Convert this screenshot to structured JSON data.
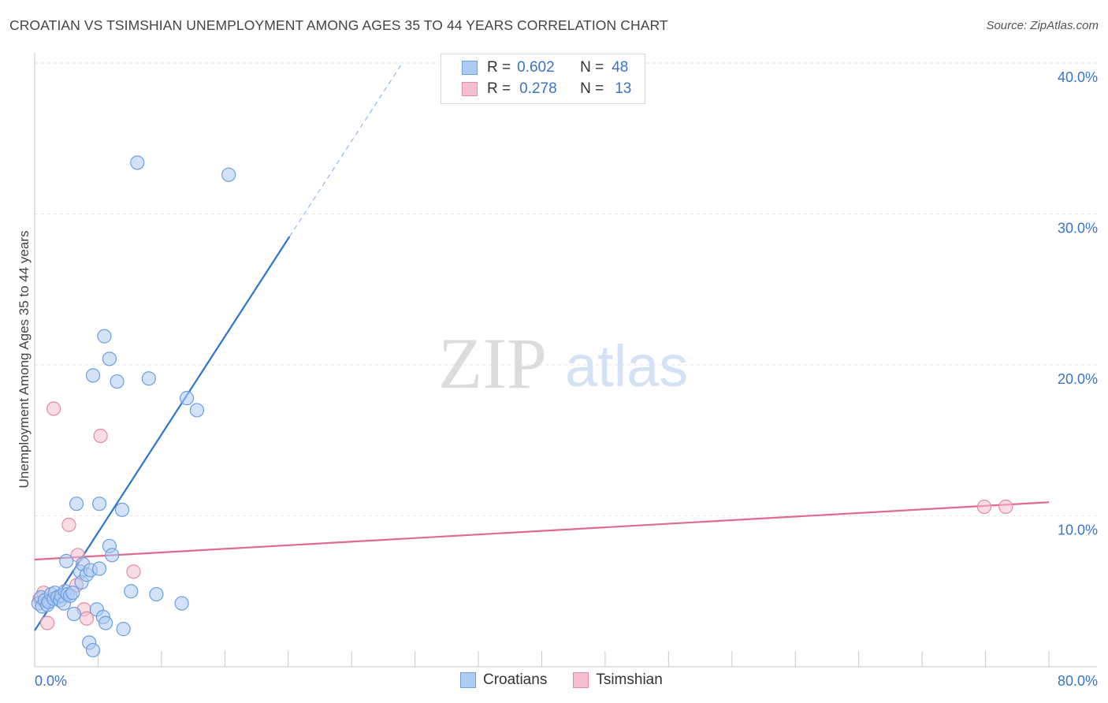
{
  "header": {
    "title": "CROATIAN VS TSIMSHIAN UNEMPLOYMENT AMONG AGES 35 TO 44 YEARS CORRELATION CHART",
    "source": "Source: ZipAtlas.com"
  },
  "watermark": {
    "zip": "ZIP",
    "atlas": "atlas"
  },
  "legend": {
    "rows": [
      {
        "r_label": "R =",
        "r_value": "0.602",
        "n_label": "N =",
        "n_value": "48"
      },
      {
        "r_label": "R =",
        "r_value": "0.278",
        "n_label": "N =",
        "n_value": "13"
      }
    ]
  },
  "colors": {
    "croatians_fill": "#aecbf1",
    "croatians_stroke": "#6c9ee0",
    "croatians_line": "#2e74d0",
    "tsimshian_fill": "#f6bfd0",
    "tsimshian_stroke": "#e48aa6",
    "tsimshian_line": "#e06a92",
    "tick_label": "#3a74c4",
    "grid": "#e5e5e5"
  },
  "chart_data": {
    "type": "scatter",
    "title": "CROATIAN VS TSIMSHIAN UNEMPLOYMENT AMONG AGES 35 TO 44 YEARS CORRELATION CHART",
    "xlabel": "",
    "ylabel": "Unemployment Among Ages 35 to 44 years",
    "xlim": [
      0,
      80
    ],
    "ylim": [
      0,
      40
    ],
    "x_tick_labels": [
      "0.0%",
      "80.0%"
    ],
    "y_ticks": [
      10,
      20,
      30,
      40
    ],
    "y_tick_labels": [
      "10.0%",
      "20.0%",
      "30.0%",
      "40.0%"
    ],
    "grid": true,
    "series": [
      {
        "name": "Croatians",
        "r": 0.602,
        "n": 48,
        "points": [
          [
            0.3,
            4.2
          ],
          [
            0.5,
            4.6
          ],
          [
            0.6,
            4.0
          ],
          [
            0.8,
            4.4
          ],
          [
            1.0,
            4.1
          ],
          [
            1.1,
            4.3
          ],
          [
            1.3,
            4.8
          ],
          [
            1.5,
            4.5
          ],
          [
            1.6,
            4.9
          ],
          [
            1.8,
            4.6
          ],
          [
            2.0,
            4.4
          ],
          [
            2.1,
            4.7
          ],
          [
            2.3,
            4.2
          ],
          [
            2.4,
            5.0
          ],
          [
            2.6,
            4.8
          ],
          [
            2.8,
            4.7
          ],
          [
            3.0,
            4.9
          ],
          [
            3.1,
            3.5
          ],
          [
            2.5,
            7.0
          ],
          [
            3.3,
            10.8
          ],
          [
            3.6,
            6.3
          ],
          [
            3.8,
            6.8
          ],
          [
            3.7,
            5.6
          ],
          [
            4.1,
            6.1
          ],
          [
            4.3,
            1.6
          ],
          [
            4.4,
            6.4
          ],
          [
            4.6,
            1.1
          ],
          [
            4.6,
            19.3
          ],
          [
            4.9,
            3.8
          ],
          [
            5.1,
            6.5
          ],
          [
            5.1,
            10.8
          ],
          [
            5.4,
            3.3
          ],
          [
            5.6,
            2.9
          ],
          [
            5.5,
            21.9
          ],
          [
            5.9,
            20.4
          ],
          [
            5.9,
            8.0
          ],
          [
            6.1,
            7.4
          ],
          [
            6.5,
            18.9
          ],
          [
            6.9,
            10.4
          ],
          [
            7.0,
            2.5
          ],
          [
            7.6,
            5.0
          ],
          [
            8.1,
            33.4
          ],
          [
            9.0,
            19.1
          ],
          [
            9.6,
            4.8
          ],
          [
            11.6,
            4.2
          ],
          [
            12.0,
            17.8
          ],
          [
            12.8,
            17.0
          ],
          [
            15.3,
            32.6
          ]
        ],
        "trend": {
          "x0": 0,
          "y0": 2.4,
          "x1": 20.1,
          "y1": 28.5,
          "dashed_to_x": 29.0,
          "dashed_to_y": 40.0
        }
      },
      {
        "name": "Tsimshian",
        "r": 0.278,
        "n": 13,
        "points": [
          [
            0.4,
            4.5
          ],
          [
            0.7,
            4.9
          ],
          [
            1.0,
            2.9
          ],
          [
            1.5,
            17.1
          ],
          [
            2.7,
            9.4
          ],
          [
            3.3,
            5.4
          ],
          [
            3.4,
            7.4
          ],
          [
            3.9,
            3.8
          ],
          [
            4.1,
            3.2
          ],
          [
            5.2,
            15.3
          ],
          [
            7.8,
            6.3
          ],
          [
            74.9,
            10.6
          ],
          [
            76.6,
            10.6
          ]
        ],
        "trend": {
          "x0": 0,
          "y0": 7.1,
          "x1": 80,
          "y1": 10.9
        }
      }
    ]
  },
  "bottom_legend": {
    "items": [
      "Croatians",
      "Tsimshian"
    ]
  }
}
